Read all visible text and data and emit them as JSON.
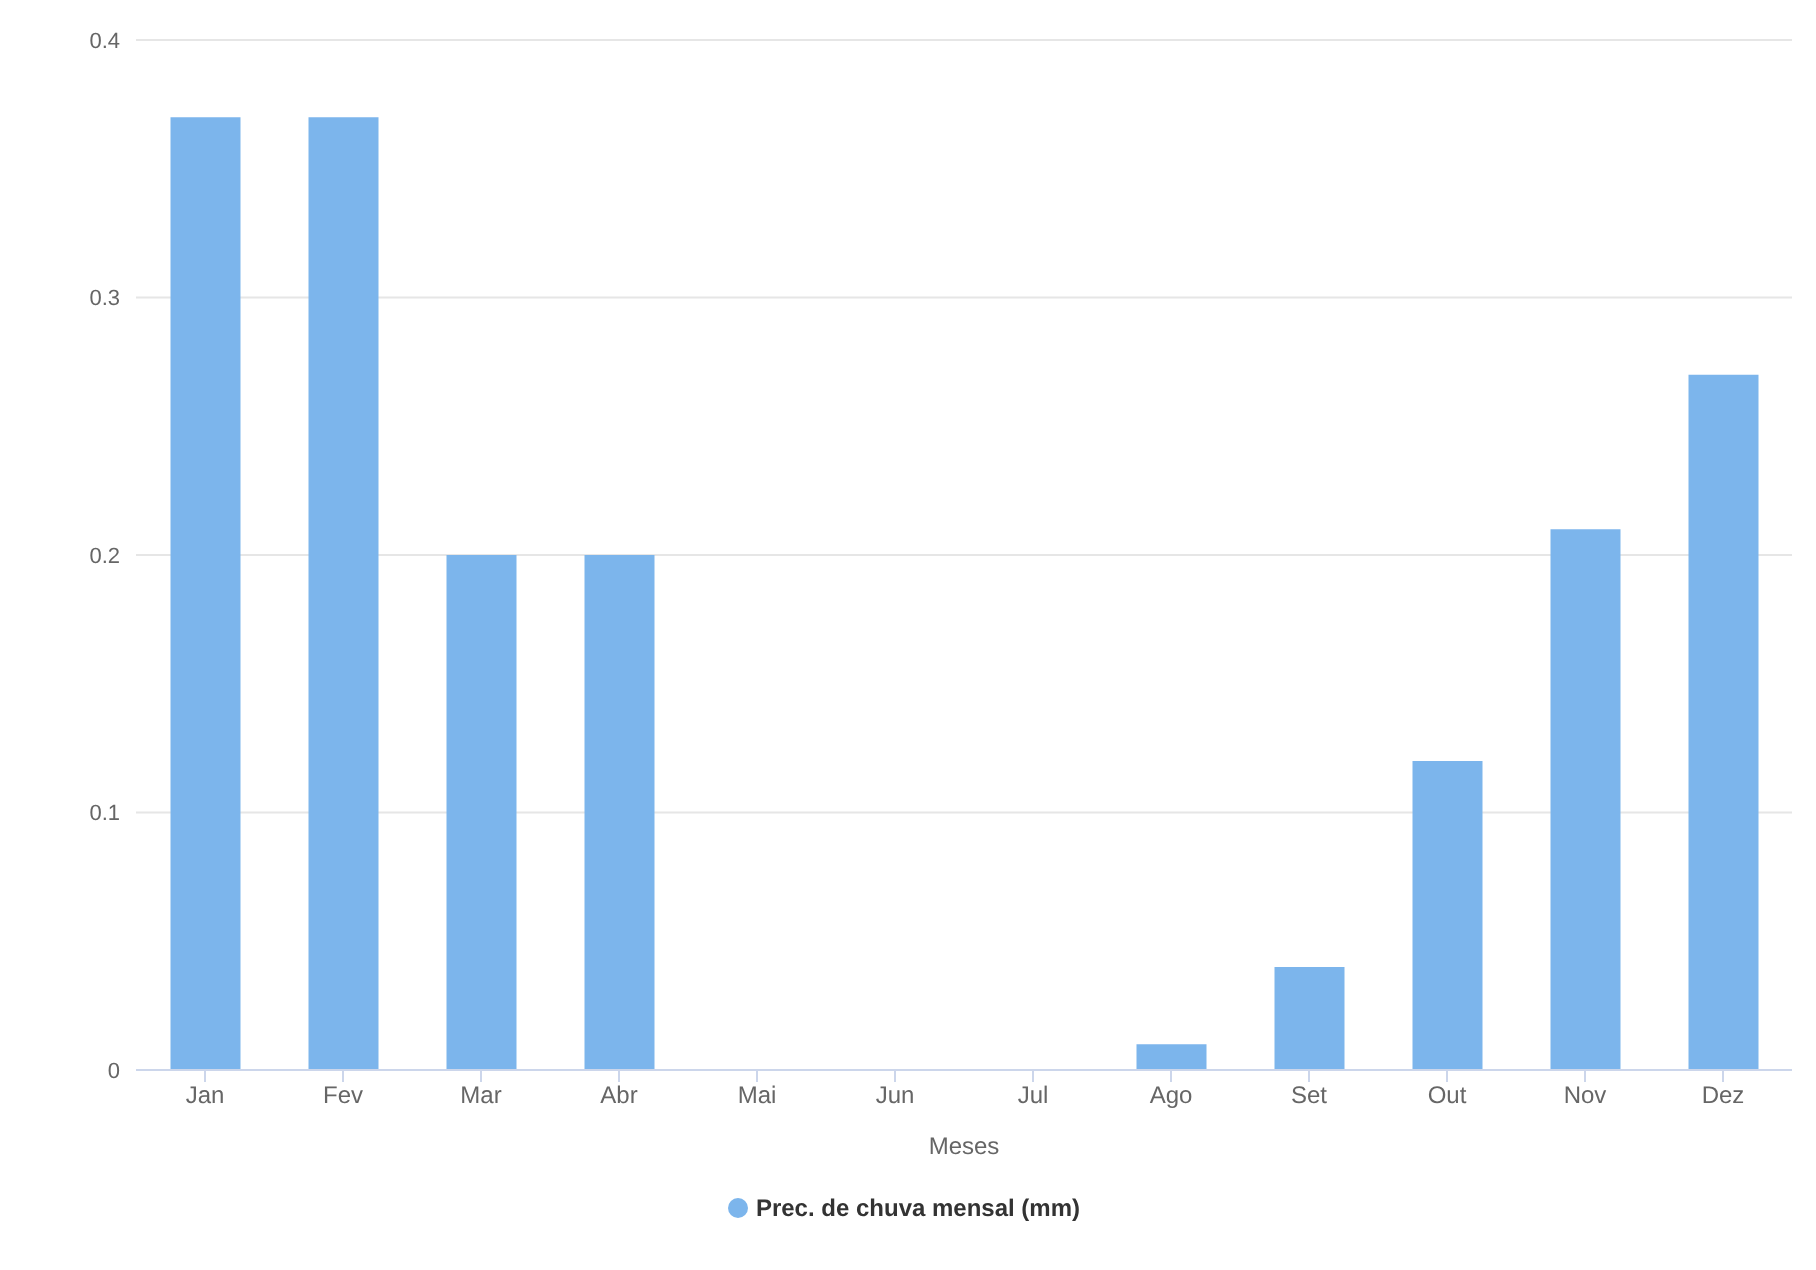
{
  "chart_data": {
    "type": "bar",
    "xlabel": "Meses",
    "categories": [
      "Jan",
      "Fev",
      "Mar",
      "Abr",
      "Mai",
      "Jun",
      "Jul",
      "Ago",
      "Set",
      "Out",
      "Nov",
      "Dez"
    ],
    "series": [
      {
        "name": "Prec. de chuva mensal (mm)",
        "color": "#7cb5ec",
        "values": [
          0.37,
          0.37,
          0.2,
          0.2,
          0,
          0,
          0,
          0.01,
          0.04,
          0.12,
          0.21,
          0.27
        ]
      }
    ],
    "ylim": [
      0,
      0.4
    ],
    "yticks": [
      0,
      0.1,
      0.2,
      0.3,
      0.4
    ],
    "grid": "y",
    "legend": "bottom"
  }
}
